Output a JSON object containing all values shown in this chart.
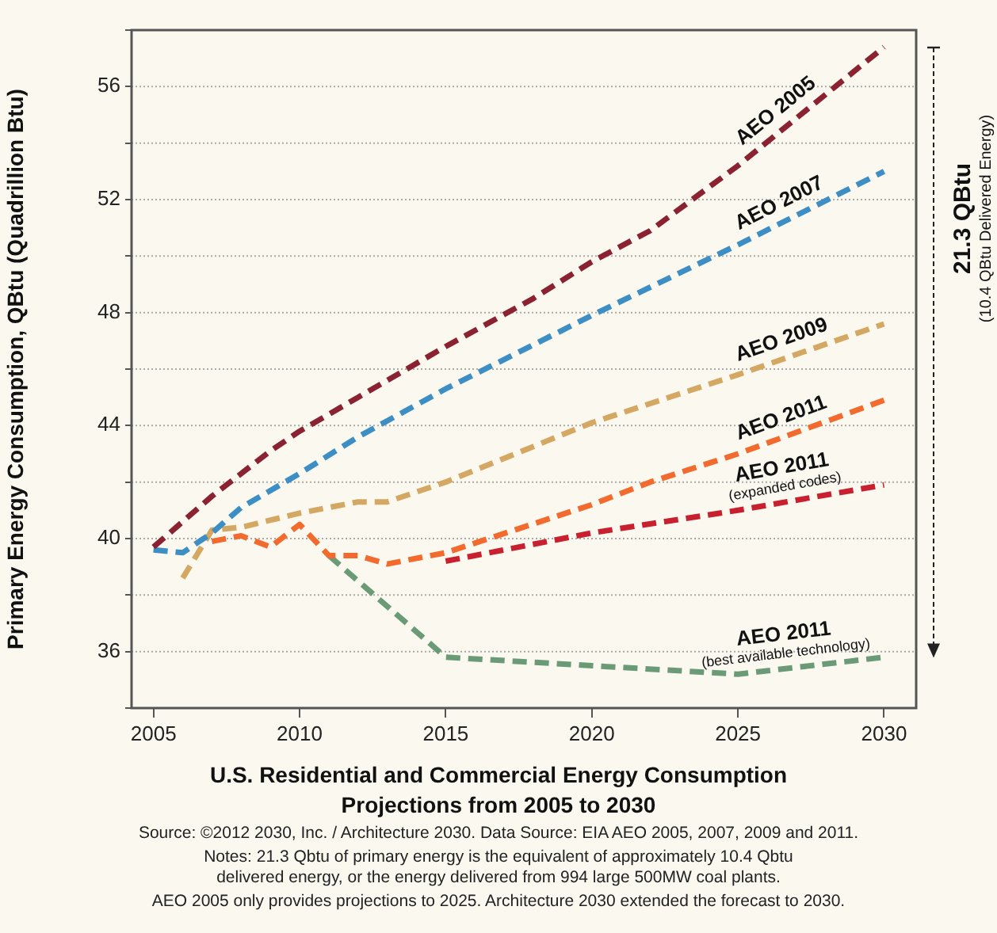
{
  "chart_data": {
    "type": "line",
    "title": "U.S. Residential and Commercial Energy Consumption\nProjections from 2005 to 2030",
    "ylabel": "Primary Energy Consumption, QBtu (Quadrillion Btu)",
    "xlim": [
      2004.25,
      2031.1
    ],
    "xticks": [
      2005,
      2010,
      2015,
      2020,
      2025,
      2030
    ],
    "ylim": [
      34,
      58
    ],
    "yticks": [
      {
        "value": 34,
        "label": null
      },
      36,
      {
        "value": 38,
        "label": null
      },
      40,
      {
        "value": 42,
        "label": null
      },
      44,
      {
        "value": 46,
        "label": null
      },
      48,
      {
        "value": 50,
        "label": null
      },
      52,
      {
        "value": 54,
        "label": null
      },
      56,
      {
        "value": 58,
        "label": null
      }
    ],
    "grid": "y",
    "legend": false,
    "marker": "none",
    "line_style": "dashed",
    "series": [
      {
        "name": "AEO 2005",
        "color": "#8b2232",
        "x": [
          2005,
          2006,
          2007,
          2008,
          2009,
          2010,
          2012,
          2015,
          2018,
          2020,
          2022,
          2025,
          2030
        ],
        "values": [
          39.7,
          40.6,
          41.5,
          42.3,
          43.1,
          43.8,
          45.0,
          46.8,
          48.5,
          49.8,
          50.9,
          53.2,
          57.4
        ]
      },
      {
        "name": "AEO 2007",
        "color": "#3d8ec4",
        "x": [
          2005,
          2006,
          2007,
          2008,
          2010,
          2012,
          2015,
          2020,
          2025,
          2030
        ],
        "values": [
          39.6,
          39.5,
          40.2,
          41.1,
          42.3,
          43.6,
          45.3,
          47.9,
          50.4,
          53.0
        ]
      },
      {
        "name": "AEO 2009",
        "color": "#d4a862",
        "x": [
          2006,
          2007,
          2008,
          2010,
          2012,
          2013,
          2015,
          2020,
          2025,
          2030
        ],
        "values": [
          38.6,
          40.3,
          40.4,
          40.9,
          41.3,
          41.3,
          42.0,
          44.1,
          45.8,
          47.6
        ]
      },
      {
        "name": "AEO 2011",
        "color": "#f26a2e",
        "x": [
          2007,
          2008,
          2009,
          2010,
          2011,
          2012,
          2013,
          2015,
          2020,
          2022,
          2025,
          2030
        ],
        "values": [
          39.9,
          40.1,
          39.7,
          40.5,
          39.4,
          39.4,
          39.1,
          39.5,
          41.2,
          42.0,
          43.0,
          44.9
        ]
      },
      {
        "name": "AEO 2011\n(expanded codes)",
        "color": "#c8202f",
        "x": [
          2015,
          2020,
          2025,
          2030
        ],
        "values": [
          39.2,
          40.2,
          41.0,
          41.9
        ]
      },
      {
        "name": "AEO 2011\n(best available technology)",
        "color": "#6b9a76",
        "x": [
          2011,
          2015,
          2020,
          2025,
          2030
        ],
        "values": [
          39.4,
          35.8,
          35.5,
          35.2,
          35.8
        ]
      }
    ],
    "annotations": [
      "21.3 QBtu",
      "(10.4 QBtu Delivered Energy)",
      "Source: ©2012 2030, Inc. / Architecture 2030. Data Source: EIA AEO 2005, 2007, 2009 and 2011.",
      "Notes: 21.3 Qbtu of primary energy is the equivalent of approximately 10.4 Qbtu\ndelivered energy, or the energy delivered from 994 large 500MW coal plants.",
      "AEO 2005 only provides projections to 2025. Architecture 2030 extended the forecast to 2030."
    ]
  }
}
